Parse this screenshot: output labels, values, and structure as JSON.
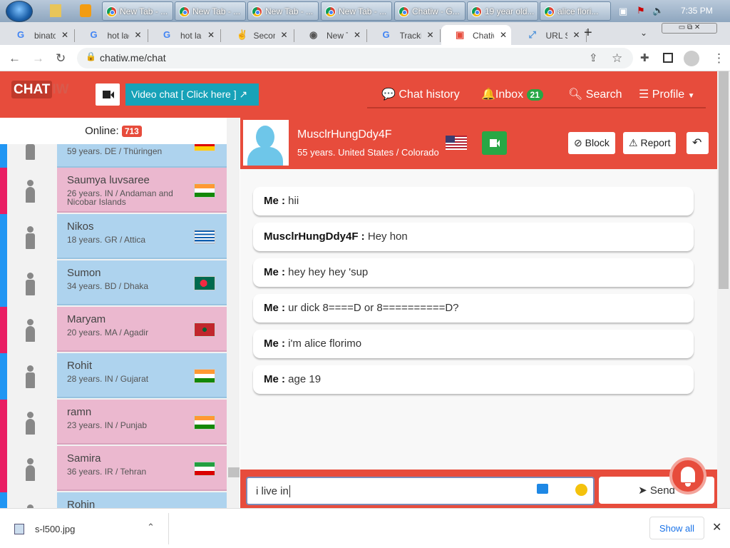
{
  "taskbar": {
    "tasks": [
      "New Tab - ...",
      "New Tab - ...",
      "New Tab - ...",
      "New Tab - ...",
      "Chatiw - G...",
      "19 year old...",
      "alice flori..."
    ],
    "clock": "7:35 PM"
  },
  "browser": {
    "tabs": [
      {
        "label": "binatone",
        "icon": "G"
      },
      {
        "label": "hot lad",
        "icon": "G"
      },
      {
        "label": "hot lad",
        "icon": "G"
      },
      {
        "label": "Second",
        "icon": "S"
      },
      {
        "label": "New Tab",
        "icon": "chrome"
      },
      {
        "label": "Tracking",
        "icon": "G"
      },
      {
        "label": "Chatiw",
        "icon": "chatiw"
      },
      {
        "label": "URL Sh",
        "icon": "link"
      }
    ],
    "url": "chatiw.me/chat"
  },
  "header": {
    "logo": "CHATIW",
    "video_chat": "Video chat  [ Click here ]",
    "chat_history": "Chat history",
    "inbox": "Inbox",
    "inbox_count": "21",
    "search": "Search",
    "profile": "Profile"
  },
  "sidebar": {
    "online_label": "Online:",
    "online_count": "713",
    "users": [
      {
        "name": "",
        "info": "59 years. DE / Thüringen",
        "gender": "male",
        "flag": "DE"
      },
      {
        "name": "Saumya luvsaree",
        "info": "26 years. IN / Andaman and Nicobar Islands",
        "gender": "female",
        "flag": "IN"
      },
      {
        "name": "Nikos",
        "info": "18 years. GR / Attica",
        "gender": "male",
        "flag": "GR"
      },
      {
        "name": "Sumon",
        "info": "34 years. BD / Dhaka",
        "gender": "male",
        "flag": "BD"
      },
      {
        "name": "Maryam",
        "info": "20 years. MA / Agadir",
        "gender": "female",
        "flag": "MA"
      },
      {
        "name": "Rohit",
        "info": "28 years. IN / Gujarat",
        "gender": "male",
        "flag": "IN"
      },
      {
        "name": "ramn",
        "info": "23 years. IN / Punjab",
        "gender": "female",
        "flag": "IN"
      },
      {
        "name": "Samira",
        "info": "36 years. IR / Tehran",
        "gender": "female",
        "flag": "IR"
      },
      {
        "name": "Rohin",
        "info": "",
        "gender": "male",
        "flag": ""
      }
    ]
  },
  "chat": {
    "partner": {
      "name": "MusclrHungDdy4F",
      "info": "55 years. United States / Colorado",
      "flag": "US"
    },
    "block": "Block",
    "report": "Report",
    "messages": [
      {
        "sender": "Me :",
        "text": "hii"
      },
      {
        "sender": "MusclrHungDdy4F :",
        "text": "Hey hon"
      },
      {
        "sender": "Me :",
        "text": "hey hey hey 'sup"
      },
      {
        "sender": "Me :",
        "text": "ur dick 8====D or 8==========D?"
      },
      {
        "sender": "Me :",
        "text": "i'm alice florimo"
      },
      {
        "sender": "Me :",
        "text": "age 19"
      }
    ],
    "input_value": "i live in",
    "send": "Send"
  },
  "downloads": {
    "file": "s-l500.jpg",
    "show_all": "Show all"
  },
  "colors": {
    "brand": "#e74c3c",
    "male": "#aed3ee",
    "female": "#ebb8cf",
    "male_strip": "#2196f3",
    "female_strip": "#e91e63"
  }
}
